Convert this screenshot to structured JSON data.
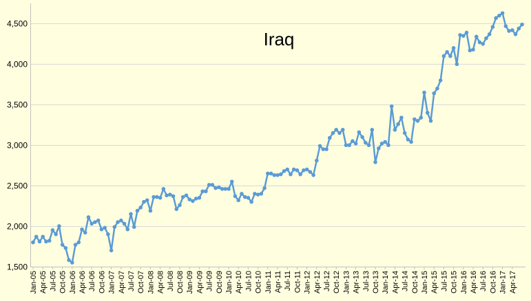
{
  "chart_data": {
    "type": "line",
    "title": "Iraq",
    "xlabel": "",
    "ylabel": "",
    "ylim": [
      1500,
      4750
    ],
    "y_ticks": [
      "1,500",
      "2,000",
      "2,500",
      "3,000",
      "3,500",
      "4,000",
      "4,500"
    ],
    "y_tick_values": [
      1500,
      2000,
      2500,
      3000,
      3500,
      4000,
      4500
    ],
    "x_tick_labels": [
      "Jan-05",
      "Apr-05",
      "Jul-05",
      "Oct-05",
      "Jan-06",
      "Apr-06",
      "Jul-06",
      "Oct-06",
      "Jan-07",
      "Apr-07",
      "Jul-07",
      "Oct-07",
      "Jan-08",
      "Apr-08",
      "Jul-08",
      "Oct-08",
      "Jan-09",
      "Apr-09",
      "Jul-09",
      "Oct-09",
      "Jan-10",
      "Apr-10",
      "Jul-10",
      "Oct-10",
      "Jan-11",
      "Apr-11",
      "Jul-11",
      "Oct-11",
      "Jan-12",
      "Apr-12",
      "Jul-12",
      "Oct-12",
      "Jan-13",
      "Apr-13",
      "Jul-13",
      "Oct-13",
      "Jan-14",
      "Apr-14",
      "Jul-14",
      "Oct-14",
      "Jan-15",
      "Apr-15",
      "Jul-15",
      "Oct-15",
      "Jan-16",
      "Apr-16",
      "Jul-16",
      "Oct-16",
      "Jan-17",
      "Apr-17"
    ],
    "grid": true,
    "legend": "none",
    "line_color": "#5b9bd5",
    "series": [
      {
        "values": [
          1800,
          1870,
          1810,
          1870,
          1810,
          1820,
          1950,
          1900,
          2000,
          1770,
          1730,
          1580,
          1550,
          1770,
          1800,
          1960,
          1920,
          2110,
          2030,
          2050,
          2070,
          1960,
          1980,
          1900,
          1700,
          1990,
          2050,
          2070,
          2030,
          1960,
          2150,
          1990,
          2190,
          2230,
          2300,
          2320,
          2190,
          2360,
          2360,
          2350,
          2460,
          2380,
          2390,
          2370,
          2210,
          2260,
          2360,
          2380,
          2330,
          2310,
          2340,
          2350,
          2430,
          2430,
          2510,
          2510,
          2470,
          2480,
          2460,
          2460,
          2460,
          2550,
          2370,
          2320,
          2400,
          2360,
          2350,
          2300,
          2400,
          2390,
          2400,
          2470,
          2650,
          2650,
          2630,
          2630,
          2640,
          2680,
          2700,
          2640,
          2700,
          2690,
          2640,
          2690,
          2700,
          2670,
          2630,
          2810,
          2990,
          2950,
          2950,
          3090,
          3150,
          3190,
          3150,
          3190,
          3000,
          3000,
          3050,
          3020,
          3160,
          3100,
          3030,
          3000,
          3190,
          2790,
          2960,
          3020,
          3040,
          3000,
          3480,
          3190,
          3260,
          3340,
          3150,
          3070,
          3040,
          3320,
          3300,
          3340,
          3650,
          3400,
          3300,
          3640,
          3700,
          3800,
          4100,
          4150,
          4100,
          4200,
          4000,
          4360,
          4350,
          4390,
          4170,
          4180,
          4340,
          4270,
          4250,
          4320,
          4370,
          4460,
          4570,
          4600,
          4630,
          4470,
          4410,
          4420,
          4370,
          4440,
          4490
        ]
      }
    ]
  }
}
